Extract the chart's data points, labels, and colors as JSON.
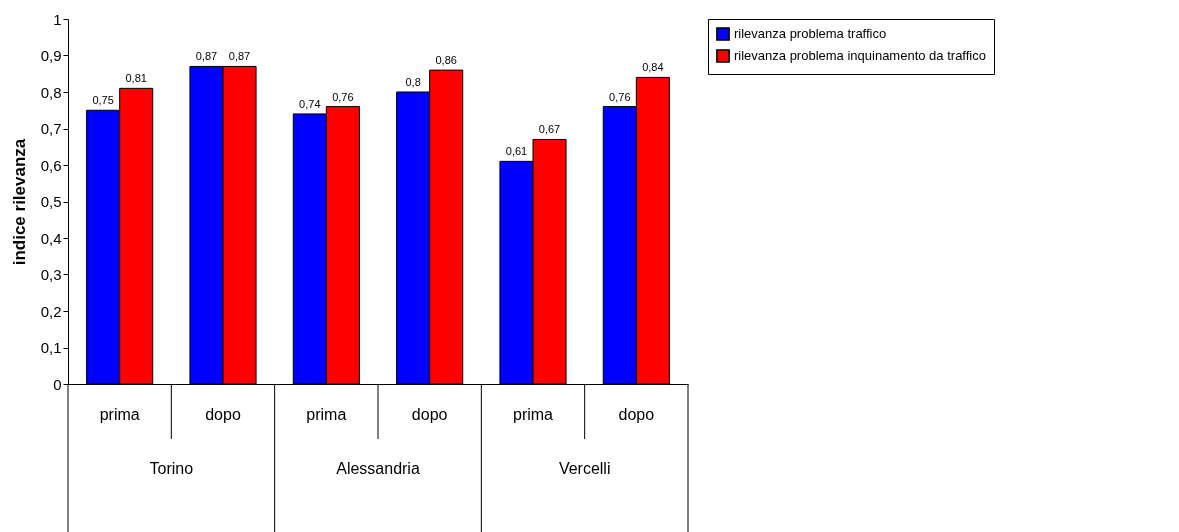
{
  "chart_data": {
    "type": "bar",
    "ylabel": "indice rilevanza",
    "categories": [
      "prima",
      "dopo",
      "prima",
      "dopo",
      "prima",
      "dopo"
    ],
    "annotations": [
      "Torino",
      "Alessandria",
      "Vercelli"
    ],
    "series": [
      {
        "name": "rilevanza problema traffico",
        "color": "#0000ff",
        "values": [
          0.75,
          0.87,
          0.74,
          0.8,
          0.61,
          0.76
        ],
        "value_labels": [
          "0,75",
          "0,87",
          "0,74",
          "0,8",
          "0,61",
          "0,76"
        ]
      },
      {
        "name": "rilevanza problema inquinamento da traffico",
        "color": "#ff0000",
        "values": [
          0.81,
          0.87,
          0.76,
          0.86,
          0.67,
          0.84
        ],
        "value_labels": [
          "0,81",
          "0,87",
          "0,76",
          "0,86",
          "0,67",
          "0,84"
        ]
      }
    ],
    "ylim": [
      0,
      1
    ],
    "yticks": [
      0,
      {
        "value": 0.1,
        "label": "0,1"
      },
      {
        "value": 0.2,
        "label": "0,2"
      },
      {
        "value": 0.3,
        "label": "0,3"
      },
      {
        "value": 0.4,
        "label": "0,4"
      },
      {
        "value": 0.5,
        "label": "0,5"
      },
      {
        "value": 0.6,
        "label": "0,6"
      },
      {
        "value": 0.7,
        "label": "0,7"
      },
      {
        "value": 0.8,
        "label": "0,8"
      },
      {
        "value": 0.9,
        "label": "0,9"
      },
      1
    ],
    "grid": false,
    "legend": "right"
  }
}
